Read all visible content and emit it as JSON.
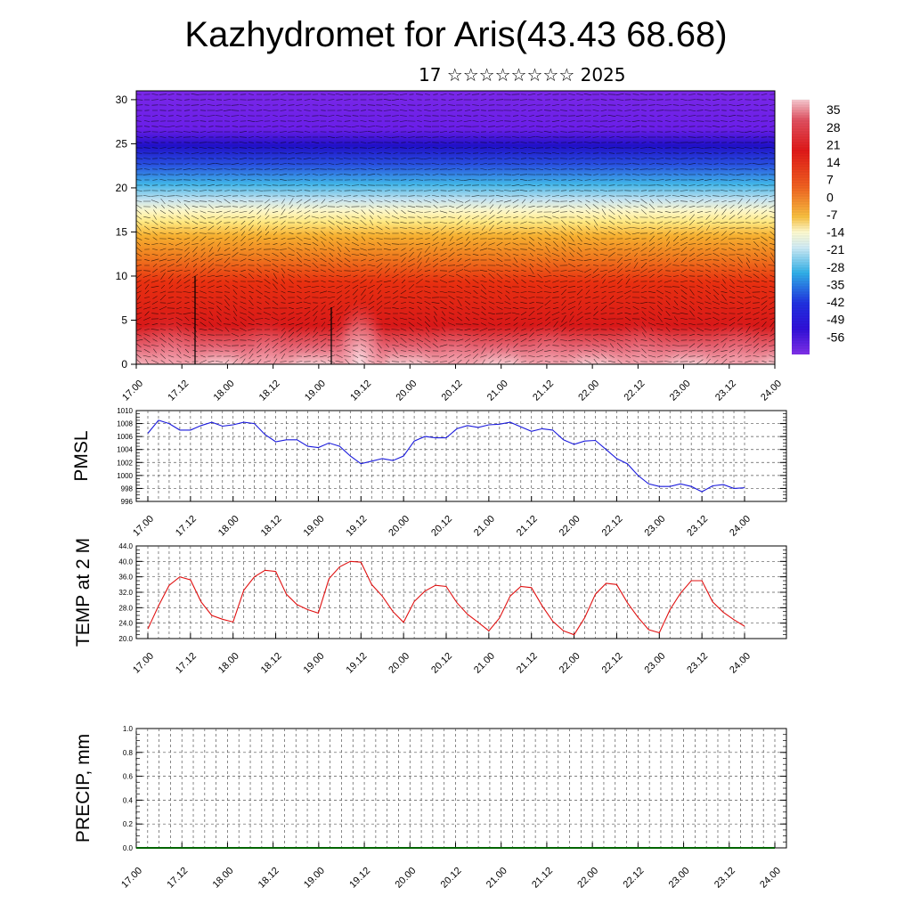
{
  "header": {
    "title": "Kazhydromet for Aris(43.43 68.68)",
    "subtitle": "17 ☆☆☆☆☆☆☆☆ 2025"
  },
  "colors": {
    "pmsl_line": "#1a1adc",
    "temp_line": "#e01010",
    "precip_zero_line": "#006400",
    "gridline": "#555555"
  },
  "chart_data": [
    {
      "type": "heatmap",
      "name": "cross-section",
      "y_ticks": [
        "0",
        "5",
        "10",
        "15",
        "20",
        "25",
        "30"
      ],
      "ylim": [
        0,
        31
      ],
      "x_ticks": [
        "17.00",
        "17.12",
        "18.00",
        "18.12",
        "19.00",
        "19.12",
        "20.00",
        "20.12",
        "21.00",
        "21.12",
        "22.00",
        "22.12",
        "23.00",
        "23.12",
        "24.00"
      ],
      "colorbar_labels": [
        "35",
        "28",
        "21",
        "14",
        "7",
        "0",
        "-7",
        "-14",
        "-21",
        "-28",
        "-35",
        "-42",
        "-49",
        "-56"
      ],
      "colorbar_range": [
        39,
        -63
      ],
      "colormap": "purple-blue-cyan-yellow-orange-red-pink",
      "overlay": "wind vectors"
    },
    {
      "type": "line",
      "name": "pmsl",
      "ylabel": "PMSL",
      "y_ticks": [
        "996",
        "998",
        "1000",
        "1002",
        "1004",
        "1006",
        "1008",
        "1010"
      ],
      "ylim": [
        996,
        1010
      ],
      "x_ticks": [
        "17.00",
        "17.12",
        "18.00",
        "18.12",
        "19.00",
        "19.12",
        "20.00",
        "20.12",
        "21.00",
        "21.12",
        "22.00",
        "22.12",
        "23.00",
        "23.12",
        "24.00"
      ],
      "values": [
        1006.5,
        1008.5,
        1008.0,
        1007.0,
        1007.0,
        1007.7,
        1008.2,
        1007.6,
        1007.8,
        1008.2,
        1008.0,
        1006.3,
        1005.2,
        1005.5,
        1005.5,
        1004.5,
        1004.3,
        1005.0,
        1004.5,
        1003.0,
        1001.8,
        1002.2,
        1002.6,
        1002.3,
        1003.0,
        1005.3,
        1006.0,
        1005.8,
        1005.8,
        1007.2,
        1007.7,
        1007.4,
        1007.8,
        1007.9,
        1008.2,
        1007.5,
        1006.8,
        1007.2,
        1007.0,
        1005.5,
        1004.8,
        1005.3,
        1005.4,
        1004.0,
        1002.6,
        1001.8,
        1000.0,
        998.7,
        998.3,
        998.3,
        998.7,
        998.3,
        997.5,
        998.4,
        998.6,
        998.0,
        998.1
      ]
    },
    {
      "type": "line",
      "name": "temperature",
      "ylabel": "TEMP at 2 M",
      "y_ticks": [
        "20.0",
        "24.0",
        "28.0",
        "32.0",
        "36.0",
        "40.0",
        "44.0"
      ],
      "ylim": [
        20,
        44
      ],
      "x_ticks": [
        "17.00",
        "17.12",
        "18.00",
        "18.12",
        "19.00",
        "19.12",
        "20.00",
        "20.12",
        "21.00",
        "21.12",
        "22.00",
        "22.12",
        "23.00",
        "23.12",
        "24.00"
      ],
      "values": [
        22.5,
        28.5,
        33.8,
        36.0,
        35.2,
        29.5,
        26.0,
        25.0,
        24.3,
        32.5,
        36.0,
        37.7,
        37.4,
        31.5,
        28.8,
        27.5,
        26.6,
        35.5,
        38.6,
        40.0,
        39.8,
        34.0,
        31.0,
        27.0,
        24.2,
        29.6,
        32.3,
        33.8,
        33.5,
        29.3,
        26.3,
        24.2,
        22.0,
        25.3,
        31.0,
        33.5,
        33.2,
        28.5,
        24.5,
        22.0,
        21.0,
        25.4,
        31.5,
        34.3,
        34.0,
        29.3,
        25.5,
        22.3,
        21.5,
        27.5,
        31.8,
        35.0,
        35.0,
        29.5,
        26.8,
        24.9,
        23.2
      ]
    },
    {
      "type": "line",
      "name": "precipitation",
      "ylabel": "PRECIP, mm",
      "y_ticks": [
        "0.0",
        "0.2",
        "0.4",
        "0.6",
        "0.8",
        "1.0"
      ],
      "ylim": [
        0,
        1
      ],
      "x_ticks": [
        "17.00",
        "17.12",
        "18.00",
        "18.12",
        "19.00",
        "19.12",
        "20.00",
        "20.12",
        "21.00",
        "21.12",
        "22.00",
        "22.12",
        "23.00",
        "23.12",
        "24.00"
      ],
      "values": [
        0,
        0,
        0,
        0,
        0,
        0,
        0,
        0,
        0,
        0,
        0,
        0,
        0,
        0,
        0,
        0,
        0,
        0,
        0,
        0,
        0,
        0,
        0,
        0,
        0,
        0,
        0,
        0,
        0,
        0,
        0,
        0,
        0,
        0,
        0,
        0,
        0,
        0,
        0,
        0,
        0,
        0,
        0,
        0,
        0,
        0,
        0,
        0,
        0,
        0,
        0,
        0,
        0,
        0,
        0,
        0,
        0
      ]
    }
  ]
}
